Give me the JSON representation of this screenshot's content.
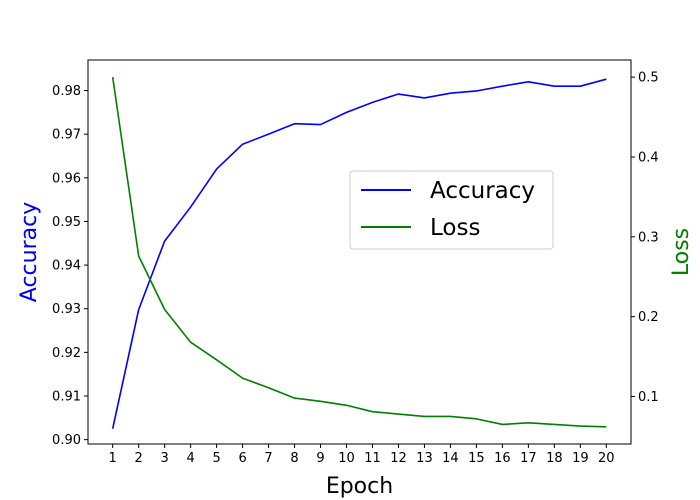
{
  "chart_data": {
    "type": "line",
    "title": "",
    "xlabel": "Epoch",
    "ylabel_left": "Accuracy",
    "ylabel_right": "Loss",
    "x": [
      1,
      2,
      3,
      4,
      5,
      6,
      7,
      8,
      9,
      10,
      11,
      12,
      13,
      14,
      15,
      16,
      17,
      18,
      19,
      20
    ],
    "series": [
      {
        "name": "Accuracy",
        "axis": "left",
        "color": "#0000ff",
        "values": [
          0.9025,
          0.9298,
          0.9455,
          0.9533,
          0.962,
          0.9677,
          0.97,
          0.9724,
          0.9722,
          0.975,
          0.9773,
          0.9792,
          0.9783,
          0.9794,
          0.9799,
          0.981,
          0.982,
          0.981,
          0.981,
          0.9826
        ]
      },
      {
        "name": "Loss",
        "axis": "right",
        "color": "#008000",
        "values": [
          0.5,
          0.276,
          0.209,
          0.168,
          0.146,
          0.123,
          0.111,
          0.098,
          0.094,
          0.089,
          0.081,
          0.078,
          0.075,
          0.075,
          0.072,
          0.065,
          0.067,
          0.065,
          0.063,
          0.062
        ]
      }
    ],
    "xticks": [
      "1",
      "2",
      "3",
      "4",
      "5",
      "6",
      "7",
      "8",
      "9",
      "10",
      "11",
      "12",
      "13",
      "14",
      "15",
      "16",
      "17",
      "18",
      "19",
      "20"
    ],
    "yticks_left": [
      "0.90",
      "0.91",
      "0.92",
      "0.93",
      "0.94",
      "0.95",
      "0.96",
      "0.97",
      "0.98"
    ],
    "yticks_right": [
      "0.1",
      "0.2",
      "0.3",
      "0.4",
      "0.5"
    ],
    "ylim_left": [
      0.899,
      0.987
    ],
    "ylim_right": [
      0.0405,
      0.5215
    ],
    "xlim": [
      0.05,
      20.95
    ],
    "grid": false,
    "legend_position": "center-right"
  }
}
